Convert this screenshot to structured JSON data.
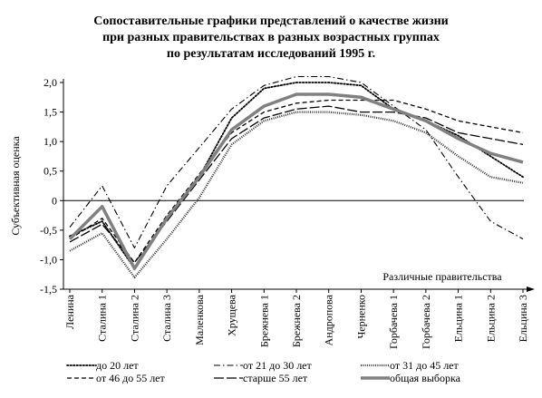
{
  "chart_data": {
    "type": "line",
    "title_lines": [
      "Сопоставительные графики представлений о качестве жизни",
      "при разных правительствах в разных возрастных группах",
      "по результатам исследований 1995 г."
    ],
    "xlabel": "Различные правительства",
    "ylabel": "Субъективная оценка",
    "ylim": [
      -1.5,
      2.0
    ],
    "yticks": [
      "2,0",
      "1,5",
      "1,0",
      "0,5",
      "0",
      "-0,5",
      "-1,0",
      "-1,5"
    ],
    "ytick_values": [
      2.0,
      1.5,
      1.0,
      0.5,
      0,
      -0.5,
      -1.0,
      -1.5
    ],
    "categories": [
      "Ленина",
      "Сталина 1",
      "Сталина 2",
      "Сталина 3",
      "Маленкова",
      "Хрущева",
      "Брежнева 1",
      "Брежнева 2",
      "Андропова",
      "Черненко",
      "Горбачева 1",
      "Горбачева 2",
      "Ельцина 1",
      "Ельцина 2",
      "Ельцина 3"
    ],
    "series": [
      {
        "name": "до 20 лет",
        "style": "dotted",
        "values": [
          -0.6,
          -0.35,
          -1.15,
          -0.3,
          0.4,
          1.4,
          1.9,
          2.0,
          2.0,
          1.95,
          1.55,
          1.35,
          1.1,
          0.75,
          0.4
        ]
      },
      {
        "name": "от 21 до 30 лет",
        "style": "dashdot",
        "values": [
          -0.45,
          0.25,
          -0.8,
          0.25,
          0.9,
          1.55,
          1.95,
          2.1,
          2.1,
          2.0,
          1.6,
          1.2,
          0.4,
          -0.35,
          -0.65
        ]
      },
      {
        "name": "от 31 до 45 лет",
        "style": "wavy",
        "values": [
          -0.85,
          -0.55,
          -1.3,
          -0.65,
          0.05,
          0.95,
          1.35,
          1.5,
          1.5,
          1.45,
          1.35,
          1.15,
          0.75,
          0.4,
          0.3
        ]
      },
      {
        "name": "от 46 до 55 лет",
        "style": "dashed",
        "values": [
          -0.65,
          -0.3,
          -1.05,
          -0.25,
          0.45,
          1.15,
          1.5,
          1.65,
          1.7,
          1.7,
          1.7,
          1.55,
          1.35,
          1.25,
          1.15
        ]
      },
      {
        "name": "старше 55 лет",
        "style": "longdash",
        "values": [
          -0.7,
          -0.4,
          -1.05,
          -0.35,
          0.35,
          1.05,
          1.4,
          1.55,
          1.6,
          1.5,
          1.5,
          1.4,
          1.15,
          1.05,
          0.95
        ]
      },
      {
        "name": "общая выборка",
        "style": "thick",
        "values": [
          -0.65,
          -0.1,
          -1.15,
          -0.3,
          0.4,
          1.2,
          1.6,
          1.8,
          1.8,
          1.75,
          1.55,
          1.35,
          1.05,
          0.8,
          0.65
        ]
      }
    ],
    "grid": false,
    "legend_position": "bottom"
  }
}
